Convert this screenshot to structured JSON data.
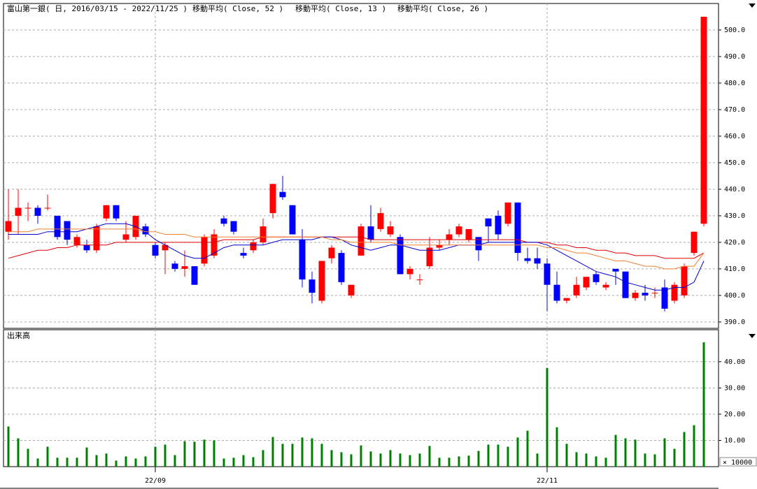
{
  "chart_data": [
    {
      "type": "candlestick",
      "title": "富山第一銀( 日, 2016/03/15 - 2022/11/25 )",
      "up_color": "#ff0000",
      "down_color": "#0000ff",
      "grid": true,
      "categories": [
        null,
        null,
        null,
        null,
        null,
        null,
        null,
        null,
        null,
        null,
        null,
        null,
        null,
        null,
        null,
        "22/09",
        null,
        null,
        null,
        null,
        null,
        null,
        null,
        null,
        null,
        null,
        null,
        null,
        null,
        null,
        null,
        null,
        null,
        null,
        null,
        null,
        null,
        null,
        null,
        null,
        null,
        null,
        null,
        null,
        null,
        null,
        null,
        null,
        null,
        null,
        null,
        null,
        null,
        null,
        null,
        "22/11",
        null,
        null,
        null,
        null,
        null,
        null,
        null,
        null,
        null,
        null,
        null,
        null,
        null,
        null,
        null,
        null
      ],
      "open": [
        424,
        430,
        433,
        433,
        433,
        430,
        428,
        419,
        419,
        417,
        429,
        434,
        421,
        422,
        426,
        419,
        417,
        412,
        410,
        411,
        412,
        415,
        429,
        428,
        416,
        417,
        420,
        431,
        439,
        434,
        421,
        406,
        398,
        414,
        416,
        400,
        415,
        426,
        425,
        423,
        422,
        408,
        406,
        411,
        418,
        421,
        423,
        421,
        422,
        429,
        430,
        427,
        435,
        414,
        414,
        412,
        404,
        398,
        400,
        403,
        408,
        403,
        410,
        409,
        399,
        401,
        401,
        403,
        398,
        400,
        416,
        427
      ],
      "high": [
        440,
        440,
        435,
        434,
        438,
        430,
        428,
        423,
        421,
        427,
        434,
        434,
        428,
        430,
        427,
        420,
        420,
        413,
        417,
        411,
        423,
        425,
        430,
        428,
        418,
        421,
        429,
        442,
        445,
        434,
        425,
        409,
        413,
        419,
        417,
        404,
        427,
        434,
        433,
        428,
        423,
        411,
        408,
        422,
        421,
        425,
        427,
        425,
        422,
        429,
        432,
        435,
        435,
        418,
        418,
        414,
        409,
        399,
        407,
        407,
        409,
        405,
        410,
        409,
        402,
        404,
        403,
        406,
        405,
        412,
        424,
        505
      ],
      "low": [
        421,
        423,
        428,
        427,
        432,
        421,
        419,
        418,
        416,
        416,
        428,
        428,
        420,
        421,
        422,
        414,
        408,
        409,
        407,
        404,
        411,
        414,
        426,
        423,
        414,
        416,
        419,
        429,
        436,
        423,
        403,
        397,
        397,
        412,
        404,
        399,
        415,
        420,
        424,
        422,
        408,
        406,
        404,
        410,
        417,
        419,
        422,
        420,
        413,
        420,
        421,
        426,
        413,
        412,
        410,
        394,
        397,
        397,
        399,
        402,
        404,
        402,
        404,
        399,
        398,
        398,
        399,
        394,
        397,
        399,
        415,
        426
      ],
      "close": [
        428,
        433,
        433,
        430,
        433,
        422,
        421,
        422,
        417,
        426,
        434,
        429,
        423,
        430,
        423,
        415,
        419,
        410,
        411,
        404,
        422,
        423,
        427,
        424,
        415,
        420,
        426,
        442,
        437,
        423,
        406,
        401,
        413,
        418,
        405,
        404,
        426,
        421,
        431,
        426,
        408,
        410,
        406,
        418,
        419,
        423,
        426,
        425,
        417,
        426,
        423,
        435,
        416,
        413,
        412,
        404,
        398,
        399,
        404,
        407,
        405,
        404,
        409,
        399,
        401,
        400,
        401,
        395,
        404,
        411,
        424,
        505
      ],
      "series": [
        {
          "name": "移動平均( Close, 52 )",
          "color": "#e00000",
          "values": [
            414,
            415,
            416,
            417,
            417,
            418,
            418,
            419,
            419,
            419,
            419,
            420,
            420,
            420,
            420,
            420,
            420,
            420,
            420,
            420,
            420,
            420,
            421,
            421,
            421,
            421,
            422,
            422,
            422,
            422,
            422,
            422,
            422,
            422,
            422,
            422,
            422,
            421,
            421,
            421,
            421,
            421,
            421,
            421,
            421,
            421,
            421,
            421,
            421,
            421,
            421,
            421,
            421,
            420,
            420,
            420,
            419,
            419,
            418,
            418,
            417,
            417,
            416,
            416,
            415,
            415,
            415,
            414,
            414,
            414,
            414,
            416
          ]
        },
        {
          "name": "移動平均( Close, 13 )",
          "color": "#0000cc",
          "values": [
            423,
            423,
            423,
            423,
            424,
            424,
            424,
            424,
            425,
            426,
            427,
            427,
            427,
            426,
            424,
            421,
            419,
            417,
            415,
            414,
            414,
            416,
            418,
            419,
            419,
            419,
            419,
            420,
            421,
            421,
            421,
            421,
            422,
            422,
            421,
            419,
            418,
            417,
            418,
            419,
            419,
            418,
            417,
            417,
            417,
            418,
            419,
            419,
            419,
            420,
            420,
            420,
            420,
            420,
            420,
            419,
            417,
            415,
            413,
            411,
            409,
            408,
            407,
            405,
            404,
            403,
            402,
            402,
            403,
            403,
            405,
            413
          ]
        },
        {
          "name": "移動平均( Close, 26 )",
          "color": "#f08030",
          "values": [
            424,
            424,
            424,
            425,
            425,
            425,
            425,
            425,
            425,
            425,
            425,
            425,
            425,
            425,
            424,
            424,
            423,
            423,
            423,
            422,
            422,
            422,
            422,
            422,
            422,
            422,
            422,
            422,
            422,
            422,
            422,
            422,
            422,
            421,
            421,
            420,
            420,
            420,
            420,
            420,
            419,
            419,
            419,
            419,
            419,
            419,
            419,
            419,
            419,
            419,
            419,
            419,
            419,
            419,
            419,
            418,
            418,
            417,
            416,
            416,
            415,
            414,
            413,
            413,
            412,
            411,
            411,
            410,
            410,
            411,
            411,
            416
          ]
        }
      ],
      "ylim": [
        387.6,
        511.3
      ],
      "yticks": [
        {
          "value": 390,
          "label": "390.0"
        },
        {
          "value": 400,
          "label": "400.0"
        },
        {
          "value": 410,
          "label": "410.0"
        },
        {
          "value": 420,
          "label": "420.0"
        },
        {
          "value": 430,
          "label": "430.0"
        },
        {
          "value": 440,
          "label": "440.0"
        },
        {
          "value": 450,
          "label": "450.0"
        },
        {
          "value": 460,
          "label": "460.0"
        },
        {
          "value": 470,
          "label": "470.0"
        },
        {
          "value": 480,
          "label": "480.0"
        },
        {
          "value": 490,
          "label": "490.0"
        },
        {
          "value": 500,
          "label": "500.0"
        }
      ]
    },
    {
      "type": "bar",
      "title": "出来高",
      "unit_label": "× 10000",
      "color": "#008000",
      "grid": true,
      "values": [
        15.3,
        10.8,
        6.8,
        3.1,
        7.6,
        3.4,
        3.4,
        3.4,
        7.3,
        4.4,
        5.0,
        2.3,
        3.9,
        3.1,
        3.9,
        7.6,
        8.4,
        4.4,
        9.7,
        9.5,
        10.3,
        10.0,
        3.1,
        3.4,
        4.4,
        3.6,
        6.3,
        11.3,
        8.7,
        8.7,
        11.1,
        10.8,
        8.7,
        6.3,
        5.5,
        4.7,
        8.1,
        5.8,
        5.0,
        6.3,
        5.0,
        4.4,
        5.0,
        7.9,
        3.4,
        3.4,
        3.9,
        4.2,
        6.0,
        8.4,
        8.4,
        7.6,
        11.1,
        13.7,
        5.0,
        37.6,
        15.0,
        8.7,
        5.5,
        5.0,
        3.9,
        3.4,
        12.1,
        10.8,
        10.3,
        5.0,
        4.7,
        10.8,
        6.8,
        13.2,
        15.8,
        47.4
      ],
      "ylim": [
        0,
        52.2
      ],
      "yticks": [
        {
          "value": 10,
          "label": "10.00"
        },
        {
          "value": 20,
          "label": "20.00"
        },
        {
          "value": 30,
          "label": "30.00"
        },
        {
          "value": 40,
          "label": "40.00"
        }
      ]
    }
  ]
}
